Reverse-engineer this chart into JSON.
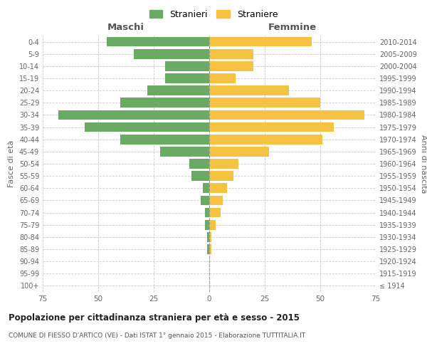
{
  "age_groups": [
    "100+",
    "95-99",
    "90-94",
    "85-89",
    "80-84",
    "75-79",
    "70-74",
    "65-69",
    "60-64",
    "55-59",
    "50-54",
    "45-49",
    "40-44",
    "35-39",
    "30-34",
    "25-29",
    "20-24",
    "15-19",
    "10-14",
    "5-9",
    "0-4"
  ],
  "birth_years": [
    "≤ 1914",
    "1915-1919",
    "1920-1924",
    "1925-1929",
    "1930-1934",
    "1935-1939",
    "1940-1944",
    "1945-1949",
    "1950-1954",
    "1955-1959",
    "1960-1964",
    "1965-1969",
    "1970-1974",
    "1975-1979",
    "1980-1984",
    "1985-1989",
    "1990-1994",
    "1995-1999",
    "2000-2004",
    "2005-2009",
    "2010-2014"
  ],
  "males": [
    0,
    0,
    0,
    1,
    1,
    2,
    2,
    4,
    3,
    8,
    9,
    22,
    40,
    56,
    68,
    40,
    28,
    20,
    20,
    34,
    46
  ],
  "females": [
    0,
    0,
    0,
    1,
    1,
    3,
    5,
    6,
    8,
    11,
    13,
    27,
    51,
    56,
    70,
    50,
    36,
    12,
    20,
    20,
    46
  ],
  "male_color": "#6aaa64",
  "female_color": "#f5c242",
  "background_color": "#ffffff",
  "grid_color": "#cccccc",
  "title": "Popolazione per cittadinanza straniera per età e sesso - 2015",
  "subtitle": "COMUNE DI FIESSO D'ARTICO (VE) - Dati ISTAT 1° gennaio 2015 - Elaborazione TUTTITALIA.IT",
  "ylabel_left": "Fasce di età",
  "ylabel_right": "Anni di nascita",
  "xlabel_left": "Maschi",
  "xlabel_right": "Femmine",
  "legend_male": "Stranieri",
  "legend_female": "Straniere",
  "xlim": 75,
  "bar_height": 0.8
}
